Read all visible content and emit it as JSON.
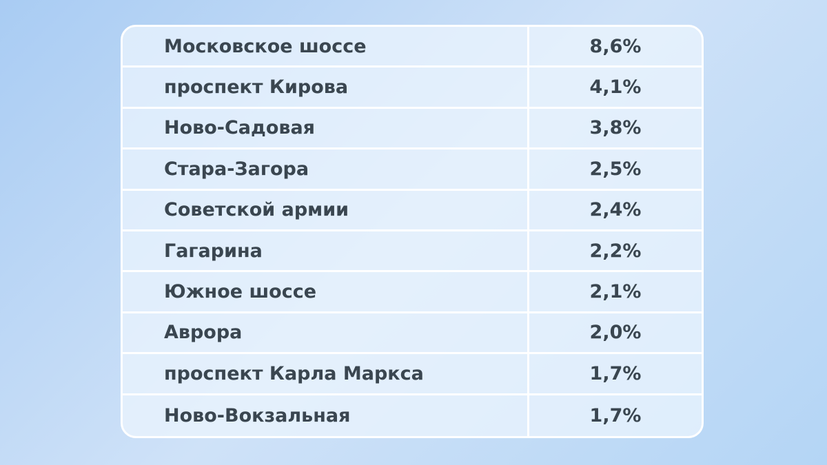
{
  "table": {
    "rows": [
      [
        "Московское шоссе",
        "8,6%"
      ],
      [
        "проспект Кирова",
        "4,1%"
      ],
      [
        "Ново-Садовая",
        "3,8%"
      ],
      [
        "Стара-Загора",
        "2,5%"
      ],
      [
        "Советской армии",
        "2,4%"
      ],
      [
        "Гагарина",
        "2,2%"
      ],
      [
        "Южное шоссе",
        "2,1%"
      ],
      [
        "Аврора",
        "2,0%"
      ],
      [
        "проспект Карла Маркса",
        "1,7%"
      ],
      [
        "Ново-Вокзальная",
        "1,7%"
      ]
    ]
  }
}
